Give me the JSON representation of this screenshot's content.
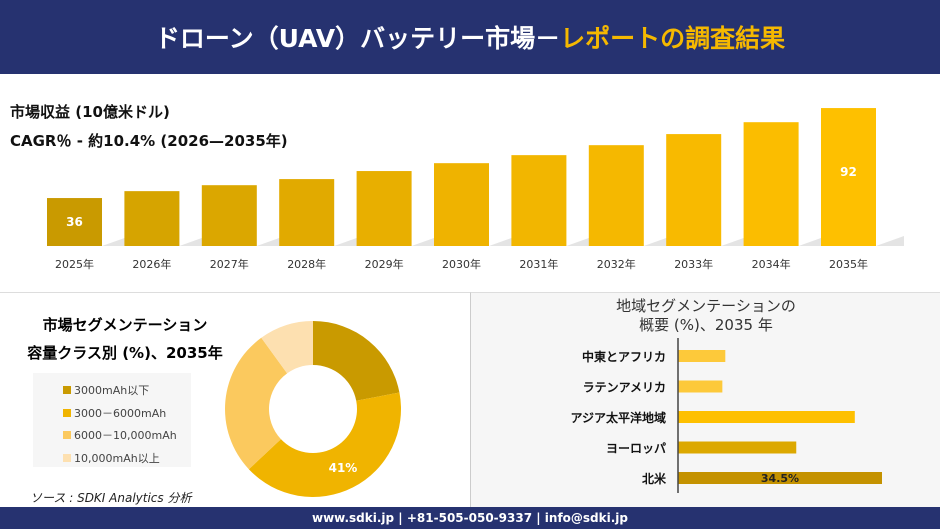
{
  "header": {
    "title_main": "ドローン（UAV）バッテリー市場－",
    "title_accent": "レポートの調査結果"
  },
  "colors": {
    "header_bg": "#263270",
    "accent": "#f5b800"
  },
  "chart_data": [
    {
      "type": "bar",
      "title": "市場収益 (10億米ドル)",
      "subtitle": "CAGR％ - 約10.4% (2026—2035年)",
      "categories": [
        "2025年",
        "2026年",
        "2027年",
        "2028年",
        "2029年",
        "2030年",
        "2031年",
        "2032年",
        "2033年",
        "2034年",
        "2035年"
      ],
      "values": [
        36,
        40.3,
        44,
        47.8,
        52.8,
        57.7,
        62.7,
        68.9,
        75.8,
        83.2,
        92
      ],
      "data_labels": {
        "0": "36",
        "10": "92"
      },
      "colors": [
        "#c99a00",
        "#d6a400",
        "#dba700",
        "#e1aa00",
        "#e8af00",
        "#efb300",
        "#f2b600",
        "#f5b800",
        "#f8ba00",
        "#fbbd00",
        "#fec000"
      ]
    },
    {
      "type": "pie",
      "donut": true,
      "title_line1": "市場セグメンテーション",
      "title_line2": "容量クラス別 (%)、2035年",
      "labels": [
        "3000mAh以下",
        "3000－6000mAh",
        "6000－10,000mAh",
        "10,000mAh以上"
      ],
      "values": [
        22,
        41,
        27,
        10
      ],
      "colors": [
        "#c99a00",
        "#f0b400",
        "#fbc95e",
        "#fde0b0"
      ],
      "data_labels": {
        "1": "41%"
      }
    },
    {
      "type": "bar",
      "orientation": "horizontal",
      "title_line1": "地域セグメンテーションの",
      "title_line2": "概要 (%)、2035 年",
      "categories": [
        "中東とアフリカ",
        "ラテンアメリカ",
        "アジア太平洋地域",
        "ヨーロッパ",
        "北米"
      ],
      "values": [
        8,
        7.5,
        29.9,
        20,
        34.5
      ],
      "colors": [
        "#fdc93a",
        "#fdc93a",
        "#fec000",
        "#dca800",
        "#c49200"
      ],
      "data_labels": {
        "4": "34.5%"
      }
    }
  ],
  "source": "ソース : SDKI Analytics 分析",
  "footer": "www.sdki.jp | +81-505-050-9337 | info@sdki.jp"
}
